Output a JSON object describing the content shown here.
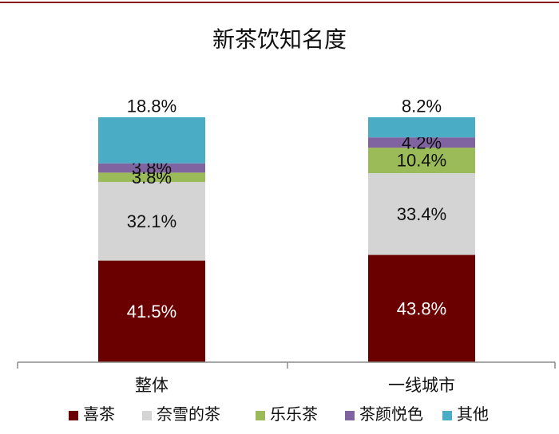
{
  "chart_data": {
    "type": "bar",
    "stacked": true,
    "title": "新茶饮知名度",
    "categories": [
      "整体",
      "一线城市"
    ],
    "series": [
      {
        "name": "喜茶",
        "color": "#6b0000",
        "values": [
          41.5,
          43.8
        ],
        "labels": [
          "41.5%",
          "43.8%"
        ]
      },
      {
        "name": "奈雪的茶",
        "color": "#d4d4d4",
        "values": [
          32.1,
          33.4
        ],
        "labels": [
          "32.1%",
          "33.4%"
        ]
      },
      {
        "name": "乐乐茶",
        "color": "#9bbb59",
        "values": [
          3.8,
          10.4
        ],
        "labels": [
          "3.8%",
          "10.4%"
        ]
      },
      {
        "name": "茶颜悦色",
        "color": "#8064a2",
        "values": [
          3.8,
          4.2
        ],
        "labels": [
          "3.8%",
          "4.2%"
        ]
      },
      {
        "name": "其他",
        "color": "#4bacc6",
        "values": [
          18.8,
          8.2
        ],
        "labels": [
          "18.8%",
          "8.2%"
        ]
      }
    ],
    "ylim": [
      0,
      100
    ],
    "legend": "bottom",
    "grid": false
  }
}
